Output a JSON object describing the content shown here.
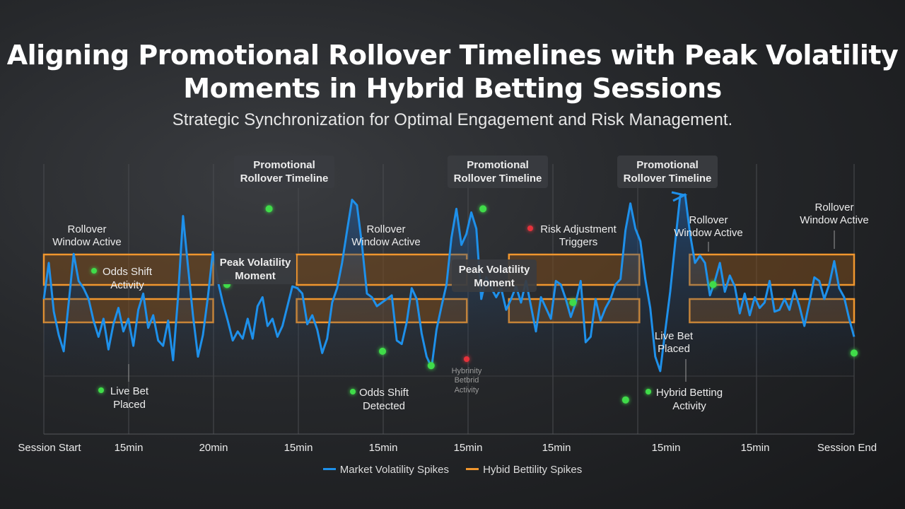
{
  "title": "Aligning Promotional Rollover Timelines with Peak Volatility Moments in Hybrid Betting Sessions",
  "subtitle": "Strategic Synchronization for Optimal Engagement and Risk Management.",
  "colors": {
    "volatility_line": "#1e90ea",
    "rollover_window": "#f0962e",
    "event_marker": "#3fdc4a",
    "risk_marker": "#e5333b"
  },
  "chart_data": {
    "type": "line",
    "x_tick_labels": [
      "Session Start",
      "15min",
      "20min",
      "15min",
      "15min",
      "15min",
      "15min",
      "15min",
      "15min",
      "Session End"
    ],
    "series": [
      {
        "name": "Market Volatility Spikes",
        "values": [
          0.42,
          0.62,
          0.35,
          0.22,
          0.13,
          0.4,
          0.67,
          0.52,
          0.48,
          0.42,
          0.3,
          0.21,
          0.31,
          0.14,
          0.28,
          0.37,
          0.24,
          0.31,
          0.16,
          0.36,
          0.45,
          0.26,
          0.33,
          0.19,
          0.16,
          0.3,
          0.08,
          0.43,
          0.88,
          0.6,
          0.33,
          0.1,
          0.22,
          0.43,
          0.68,
          0.52,
          0.4,
          0.3,
          0.19,
          0.24,
          0.2,
          0.31,
          0.2,
          0.38,
          0.43,
          0.27,
          0.31,
          0.21,
          0.27,
          0.38,
          0.49,
          0.48,
          0.45,
          0.28,
          0.33,
          0.25,
          0.12,
          0.2,
          0.4,
          0.48,
          0.62,
          0.8,
          0.97,
          0.94,
          0.72,
          0.45,
          0.43,
          0.38,
          0.4,
          0.42,
          0.44,
          0.19,
          0.17,
          0.29,
          0.48,
          0.42,
          0.23,
          0.1,
          0.04,
          0.25,
          0.38,
          0.5,
          0.76,
          0.92,
          0.72,
          0.78,
          0.9,
          0.81,
          0.42,
          0.54,
          0.48,
          0.43,
          0.48,
          0.36,
          0.42,
          0.49,
          0.4,
          0.52,
          0.38,
          0.24,
          0.43,
          0.37,
          0.31,
          0.52,
          0.5,
          0.42,
          0.32,
          0.4,
          0.52,
          0.18,
          0.21,
          0.42,
          0.3,
          0.37,
          0.42,
          0.5,
          0.53,
          0.8,
          0.95,
          0.81,
          0.74,
          0.53,
          0.37,
          0.1,
          0.02,
          0.24,
          0.46,
          0.73,
          0.99,
          1.0,
          0.78,
          0.62,
          0.66,
          0.62,
          0.44,
          0.52,
          0.62,
          0.46,
          0.55,
          0.49,
          0.34,
          0.45,
          0.33,
          0.43,
          0.37,
          0.4,
          0.52,
          0.35,
          0.36,
          0.42,
          0.36,
          0.47,
          0.38,
          0.27,
          0.4,
          0.54,
          0.52,
          0.42,
          0.5,
          0.63,
          0.48,
          0.43,
          0.31,
          0.21
        ]
      }
    ],
    "rollover_windows": [
      {
        "x0": 0.0,
        "x1": 0.209,
        "band": "upper"
      },
      {
        "x0": 0.0,
        "x1": 0.209,
        "band": "lower"
      },
      {
        "x0": 0.312,
        "x1": 0.522,
        "band": "upper"
      },
      {
        "x0": 0.312,
        "x1": 0.522,
        "band": "lower"
      },
      {
        "x0": 0.574,
        "x1": 0.735,
        "band": "upper"
      },
      {
        "x0": 0.574,
        "x1": 0.735,
        "band": "lower"
      },
      {
        "x0": 0.797,
        "x1": 1.0,
        "band": "upper"
      },
      {
        "x0": 0.797,
        "x1": 1.0,
        "band": "lower"
      }
    ],
    "event_markers": [
      {
        "x": 0.226,
        "y": 0.5,
        "kind": "event"
      },
      {
        "x": 0.278,
        "y": 0.92,
        "kind": "event"
      },
      {
        "x": 0.418,
        "y": 0.13,
        "kind": "event"
      },
      {
        "x": 0.478,
        "y": 0.05,
        "kind": "event"
      },
      {
        "x": 0.542,
        "y": 0.92,
        "kind": "event"
      },
      {
        "x": 0.653,
        "y": 0.4,
        "kind": "event"
      },
      {
        "x": 0.718,
        "y": -0.14,
        "kind": "event"
      },
      {
        "x": 0.826,
        "y": 0.5,
        "kind": "event"
      },
      {
        "x": 1.0,
        "y": 0.12,
        "kind": "event"
      }
    ],
    "annotations": [
      {
        "text": "Promotional Rollover Timeline",
        "boxed": true
      },
      {
        "text": "Promotional Rollover Timeline",
        "boxed": true
      },
      {
        "text": "Promotional Rollover Timeline",
        "boxed": true
      },
      {
        "text": "Peak Volatility Moment",
        "boxed": true
      },
      {
        "text": "Peak Volatility Moment",
        "boxed": true
      },
      {
        "text": "Rollover Window Active"
      },
      {
        "text": "Rollover Window Active"
      },
      {
        "text": "Rollover Window Active"
      },
      {
        "text": "Rollover Window Active"
      },
      {
        "text": "Odds Shift Activity"
      },
      {
        "text": "Risk Adjustment Triggers"
      },
      {
        "text": "Live Bet Placed"
      },
      {
        "text": "Odds Shift Detected"
      },
      {
        "text": "Hybrinity Betbrid Activity"
      },
      {
        "text": "Live Bet Placed"
      },
      {
        "text": "Hybrid Betting Activity"
      }
    ],
    "grid": true,
    "legend": [
      {
        "label": "Market Volatility Spikes",
        "color": "#1e90ea"
      },
      {
        "label": "Hybid Bettility Spikes",
        "color": "#f0962e"
      }
    ],
    "legend_position": "bottom-center"
  }
}
